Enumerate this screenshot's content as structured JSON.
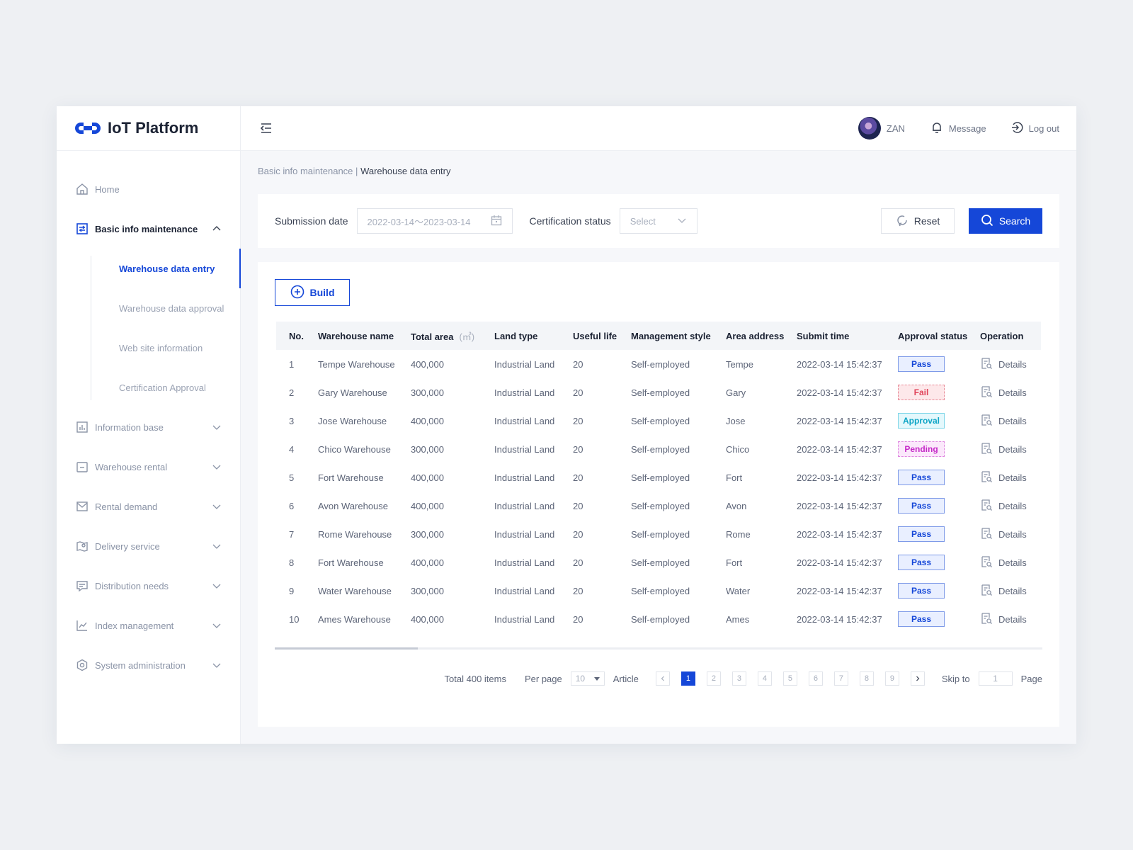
{
  "app": {
    "title": "IoT Platform",
    "brand_color": "#1547d8"
  },
  "header": {
    "user_name": "ZAN",
    "message_label": "Message",
    "logout_label": "Log out"
  },
  "sidebar": {
    "items": [
      {
        "label": "Home",
        "icon": "home-icon"
      },
      {
        "label": "Basic info maintenance",
        "icon": "database-icon",
        "open": true,
        "children": [
          {
            "label": "Warehouse data entry",
            "active": true
          },
          {
            "label": "Warehouse data approval"
          },
          {
            "label": "Web site information"
          },
          {
            "label": "Certification Approval"
          }
        ]
      },
      {
        "label": "Information base",
        "icon": "bar-chart-icon"
      },
      {
        "label": "Warehouse rental",
        "icon": "box-icon"
      },
      {
        "label": "Rental demand",
        "icon": "mail-icon"
      },
      {
        "label": "Delivery service",
        "icon": "map-icon"
      },
      {
        "label": "Distribution needs",
        "icon": "message-icon"
      },
      {
        "label": "Index management",
        "icon": "line-chart-icon"
      },
      {
        "label": "System administration",
        "icon": "settings-icon"
      }
    ]
  },
  "breadcrumb": {
    "parent": "Basic info maintenance",
    "separator": "|",
    "current": "Warehouse data entry"
  },
  "filter": {
    "date_label": "Submission date",
    "date_value": "2022-03-14～2023-03-14",
    "status_label": "Certification status",
    "status_placeholder": "Select",
    "reset_label": "Reset",
    "search_label": "Search"
  },
  "toolbar": {
    "build_label": "Build"
  },
  "table": {
    "headers": {
      "no": "No.",
      "name": "Warehouse name",
      "area": "Total area",
      "area_unit": "(㎡)",
      "land": "Land type",
      "life": "Useful life",
      "style": "Management style",
      "addr": "Area address",
      "time": "Submit time",
      "status": "Approval status",
      "op": "Operation"
    },
    "rows": [
      {
        "no": "1",
        "name": "Tempe Warehouse",
        "area": "400,000",
        "land": "Industrial Land",
        "life": "20",
        "style": "Self-employed",
        "addr": "Tempe",
        "time": "2022-03-14 15:42:37",
        "status": "Pass",
        "op": "Details"
      },
      {
        "no": "2",
        "name": "Gary Warehouse",
        "area": "300,000",
        "land": "Industrial Land",
        "life": "20",
        "style": "Self-employed",
        "addr": "Gary",
        "time": "2022-03-14 15:42:37",
        "status": "Fail",
        "op": "Details"
      },
      {
        "no": "3",
        "name": "Jose Warehouse",
        "area": "400,000",
        "land": "Industrial Land",
        "life": "20",
        "style": "Self-employed",
        "addr": "Jose",
        "time": "2022-03-14 15:42:37",
        "status": "Approval",
        "op": "Details"
      },
      {
        "no": "4",
        "name": "Chico Warehouse",
        "area": "300,000",
        "land": "Industrial Land",
        "life": "20",
        "style": "Self-employed",
        "addr": "Chico",
        "time": "2022-03-14 15:42:37",
        "status": "Pending",
        "op": "Details"
      },
      {
        "no": "5",
        "name": "Fort Warehouse",
        "area": "400,000",
        "land": "Industrial Land",
        "life": "20",
        "style": "Self-employed",
        "addr": "Fort",
        "time": "2022-03-14 15:42:37",
        "status": "Pass",
        "op": "Details"
      },
      {
        "no": "6",
        "name": "Avon Warehouse",
        "area": "400,000",
        "land": "Industrial Land",
        "life": "20",
        "style": "Self-employed",
        "addr": "Avon",
        "time": "2022-03-14 15:42:37",
        "status": "Pass",
        "op": "Details"
      },
      {
        "no": "7",
        "name": "Rome Warehouse",
        "area": "300,000",
        "land": "Industrial Land",
        "life": "20",
        "style": "Self-employed",
        "addr": "Rome",
        "time": "2022-03-14 15:42:37",
        "status": "Pass",
        "op": "Details"
      },
      {
        "no": "8",
        "name": "Fort Warehouse",
        "area": "400,000",
        "land": "Industrial Land",
        "life": "20",
        "style": "Self-employed",
        "addr": "Fort",
        "time": "2022-03-14 15:42:37",
        "status": "Pass",
        "op": "Details"
      },
      {
        "no": "9",
        "name": "Water Warehouse",
        "area": "300,000",
        "land": "Industrial Land",
        "life": "20",
        "style": "Self-employed",
        "addr": "Water",
        "time": "2022-03-14 15:42:37",
        "status": "Pass",
        "op": "Details"
      },
      {
        "no": "10",
        "name": "Ames Warehouse",
        "area": "400,000",
        "land": "Industrial Land",
        "life": "20",
        "style": "Self-employed",
        "addr": "Ames",
        "time": "2022-03-14 15:42:37",
        "status": "Pass",
        "op": "Details"
      }
    ]
  },
  "pagination": {
    "total": "Total 400 items",
    "per_page_label": "Per page",
    "per_page_value": "10",
    "article_label": "Article",
    "pages": [
      "1",
      "2",
      "3",
      "4",
      "5",
      "6",
      "7",
      "8",
      "9"
    ],
    "current_page": "1",
    "skip_label": "Skip to",
    "skip_value": "1",
    "page_label": "Page"
  }
}
